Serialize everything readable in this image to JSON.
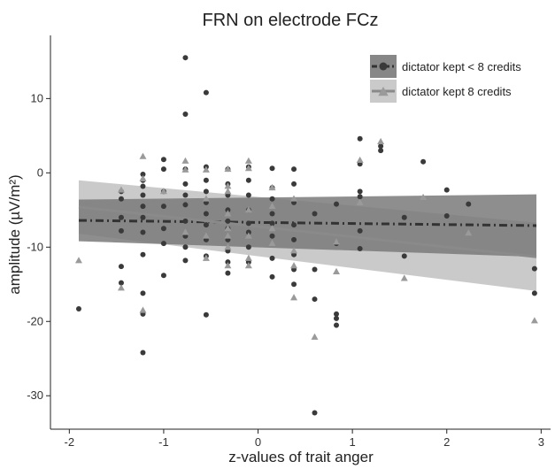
{
  "chart_data": {
    "type": "scatter",
    "title": "FRN on electrode FCz",
    "xlabel": "z-values of trait anger",
    "ylabel": "amplitude (µV/m²)",
    "xlim": [
      -2.2,
      3.1
    ],
    "ylim": [
      -34.5,
      18.5
    ],
    "x_ticks": [
      -2,
      -1,
      0,
      1,
      2,
      3
    ],
    "y_ticks": [
      -30,
      -20,
      -10,
      0,
      10
    ],
    "grid": false,
    "legend_position": "top-right",
    "series": [
      {
        "name": "dictator kept < 8 credits",
        "marker": "circle",
        "color": "#3a3a3a",
        "line_style": "dash-dot",
        "band_color": "#7a7a7a",
        "fit": {
          "x": [
            -1.9,
            2.95
          ],
          "y": [
            -6.4,
            -7.1
          ],
          "lower": [
            -9.2,
            -11.3
          ],
          "upper": [
            -3.6,
            -2.9
          ]
        },
        "points": [
          [
            -1.9,
            -18.3
          ],
          [
            -1.45,
            -2.5
          ],
          [
            -1.45,
            -3.5
          ],
          [
            -1.45,
            -6
          ],
          [
            -1.45,
            -7.8
          ],
          [
            -1.45,
            -12.6
          ],
          [
            -1.45,
            -14.8
          ],
          [
            -1.22,
            -0.2
          ],
          [
            -1.22,
            -1
          ],
          [
            -1.22,
            -1.8
          ],
          [
            -1.22,
            -3
          ],
          [
            -1.22,
            -4.5
          ],
          [
            -1.22,
            -6
          ],
          [
            -1.22,
            -8
          ],
          [
            -1.22,
            -11
          ],
          [
            -1.22,
            -16.2
          ],
          [
            -1.22,
            -19
          ],
          [
            -1.22,
            -24.2
          ],
          [
            -1,
            0.5
          ],
          [
            -1,
            1.8
          ],
          [
            -1,
            -2.5
          ],
          [
            -1,
            -4.5
          ],
          [
            -1,
            -7.5
          ],
          [
            -1,
            -9.5
          ],
          [
            -1,
            -13.8
          ],
          [
            -0.77,
            15.5
          ],
          [
            -0.77,
            7.9
          ],
          [
            -0.77,
            0.5
          ],
          [
            -0.77,
            -1.5
          ],
          [
            -0.77,
            -3
          ],
          [
            -0.77,
            -4.3
          ],
          [
            -0.77,
            -6.5
          ],
          [
            -0.77,
            -8.5
          ],
          [
            -0.77,
            -10
          ],
          [
            -0.77,
            -11.8
          ],
          [
            -0.55,
            10.8
          ],
          [
            -0.55,
            0.8
          ],
          [
            -0.55,
            -1
          ],
          [
            -0.55,
            -2.5
          ],
          [
            -0.55,
            -4
          ],
          [
            -0.55,
            -5.5
          ],
          [
            -0.55,
            -7
          ],
          [
            -0.55,
            -9
          ],
          [
            -0.55,
            -11.2
          ],
          [
            -0.55,
            -19.1
          ],
          [
            -0.32,
            0.5
          ],
          [
            -0.32,
            -1.5
          ],
          [
            -0.32,
            -3
          ],
          [
            -0.32,
            -5
          ],
          [
            -0.32,
            -6.5
          ],
          [
            -0.32,
            -7.5
          ],
          [
            -0.32,
            -9
          ],
          [
            -0.32,
            -10.5
          ],
          [
            -0.32,
            -12
          ],
          [
            -0.32,
            -13.5
          ],
          [
            -0.1,
            0.8
          ],
          [
            -0.1,
            -1
          ],
          [
            -0.1,
            -3
          ],
          [
            -0.1,
            -5
          ],
          [
            -0.1,
            -6.8
          ],
          [
            -0.1,
            -8
          ],
          [
            -0.1,
            -10
          ],
          [
            -0.1,
            -12
          ],
          [
            0.15,
            0.6
          ],
          [
            0.15,
            -2
          ],
          [
            0.15,
            -3.5
          ],
          [
            0.15,
            -5.5
          ],
          [
            0.15,
            -6.8
          ],
          [
            0.15,
            -8.5
          ],
          [
            0.15,
            -11.5
          ],
          [
            0.15,
            -14
          ],
          [
            0.38,
            0.5
          ],
          [
            0.38,
            -1.5
          ],
          [
            0.38,
            -4
          ],
          [
            0.38,
            -7
          ],
          [
            0.38,
            -9
          ],
          [
            0.38,
            -11
          ],
          [
            0.38,
            -13
          ],
          [
            0.38,
            -15
          ],
          [
            0.6,
            -5.5
          ],
          [
            0.6,
            -13
          ],
          [
            0.6,
            -17
          ],
          [
            0.6,
            -32.3
          ],
          [
            0.83,
            -4.2
          ],
          [
            0.83,
            -9.5
          ],
          [
            0.83,
            -19
          ],
          [
            0.83,
            -19.6
          ],
          [
            0.83,
            -20.5
          ],
          [
            1.08,
            4.6
          ],
          [
            1.08,
            1.2
          ],
          [
            1.08,
            -2.5
          ],
          [
            1.08,
            -3.2
          ],
          [
            1.08,
            -7.8
          ],
          [
            1.08,
            -10.2
          ],
          [
            1.3,
            3.6
          ],
          [
            1.3,
            3
          ],
          [
            1.55,
            -6
          ],
          [
            1.55,
            -11.2
          ],
          [
            1.75,
            1.5
          ],
          [
            2,
            -2.3
          ],
          [
            2,
            -5.8
          ],
          [
            2.23,
            -4.2
          ],
          [
            2.93,
            -12.9
          ],
          [
            2.93,
            -16.2
          ]
        ]
      },
      {
        "name": "dictator kept 8 credits",
        "marker": "triangle",
        "color": "#9a9a9a",
        "line_style": "solid",
        "band_color": "#c4c4c4",
        "fit": {
          "x": [
            -1.9,
            2.95
          ],
          "y": [
            -4.6,
            -11.3
          ],
          "lower": [
            -8.2,
            -15.9
          ],
          "upper": [
            -1.0,
            -6.7
          ]
        },
        "points": [
          [
            -1.9,
            -11.8
          ],
          [
            -1.45,
            -2.3
          ],
          [
            -1.45,
            -15.5
          ],
          [
            -1.22,
            2.2
          ],
          [
            -1.22,
            -0.8
          ],
          [
            -1.22,
            -18.5
          ],
          [
            -1,
            -2.5
          ],
          [
            -0.77,
            1.6
          ],
          [
            -0.77,
            0.4
          ],
          [
            -0.77,
            -8
          ],
          [
            -0.55,
            0.4
          ],
          [
            -0.55,
            -3.5
          ],
          [
            -0.55,
            -8.5
          ],
          [
            -0.55,
            -11.5
          ],
          [
            -0.32,
            0.5
          ],
          [
            -0.32,
            -1.8
          ],
          [
            -0.32,
            -2.5
          ],
          [
            -0.32,
            -5.5
          ],
          [
            -0.32,
            -7.5
          ],
          [
            -0.32,
            -8.5
          ],
          [
            -0.32,
            -10
          ],
          [
            -0.32,
            -12.5
          ],
          [
            -0.1,
            1.6
          ],
          [
            -0.1,
            0.6
          ],
          [
            -0.1,
            -5
          ],
          [
            -0.1,
            -8.5
          ],
          [
            -0.1,
            -11.5
          ],
          [
            -0.1,
            -12.5
          ],
          [
            0.15,
            -2
          ],
          [
            0.15,
            -4.5
          ],
          [
            0.15,
            -7.5
          ],
          [
            0.15,
            -9.5
          ],
          [
            0.38,
            -3.5
          ],
          [
            0.38,
            -10.5
          ],
          [
            0.38,
            -12.5
          ],
          [
            0.38,
            -16.8
          ],
          [
            0.6,
            -22.1
          ],
          [
            0.83,
            -9.3
          ],
          [
            0.83,
            -13.3
          ],
          [
            1.08,
            1.7
          ],
          [
            1.08,
            -4
          ],
          [
            1.3,
            4.2
          ],
          [
            1.55,
            -14.2
          ],
          [
            1.75,
            -3.3
          ],
          [
            2.23,
            -8.1
          ],
          [
            2.93,
            -19.9
          ]
        ]
      }
    ]
  }
}
